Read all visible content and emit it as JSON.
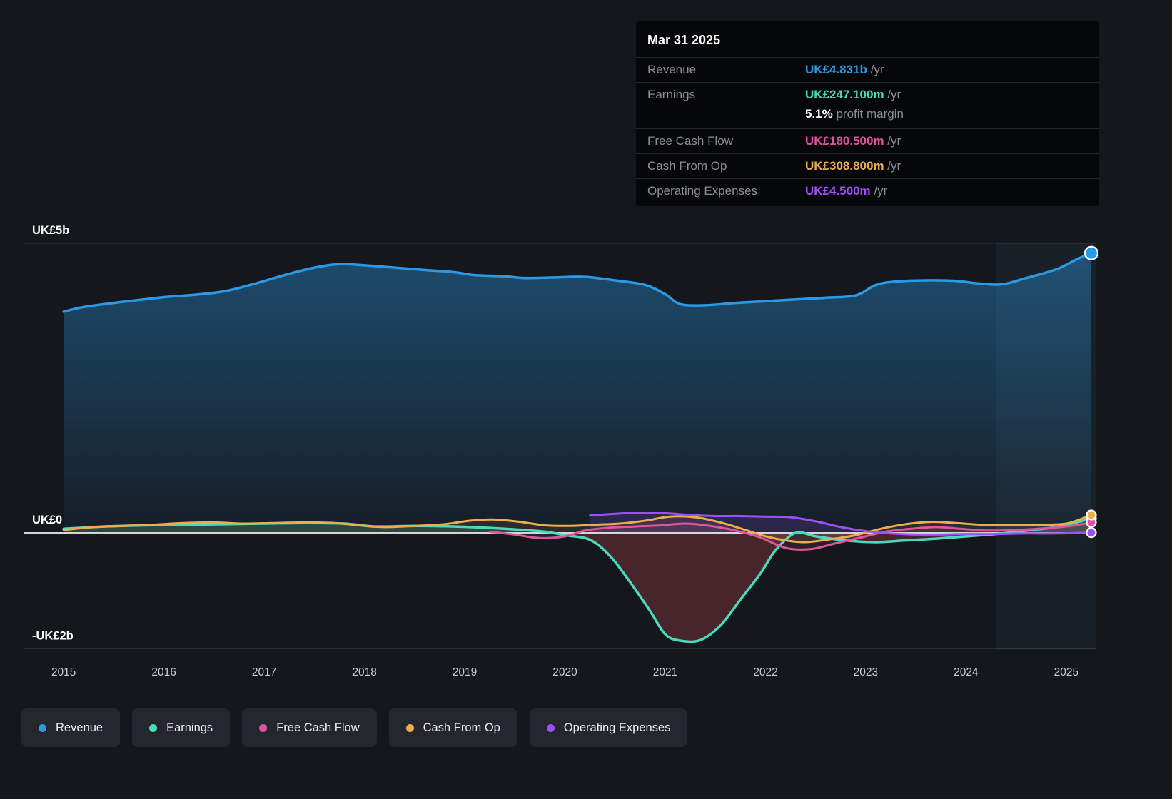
{
  "tooltip": {
    "date": "Mar 31 2025",
    "rows": [
      {
        "key": "revenue",
        "label": "Revenue",
        "value": "UK£4.831b",
        "suffix": " /yr",
        "color": "#2b99e5"
      },
      {
        "key": "earnings",
        "label": "Earnings",
        "value": "UK£247.100m",
        "suffix": " /yr",
        "color": "#4ad9bd"
      },
      {
        "key": "profit-margin",
        "label": "",
        "value": "5.1%",
        "suffix": " profit margin",
        "color": "#ffffff",
        "sub": true
      },
      {
        "key": "free-cash-flow",
        "label": "Free Cash Flow",
        "value": "UK£180.500m",
        "suffix": " /yr",
        "color": "#e0549d"
      },
      {
        "key": "cash-from-op",
        "label": "Cash From Op",
        "value": "UK£308.800m",
        "suffix": " /yr",
        "color": "#ebad4f"
      },
      {
        "key": "operating-expenses",
        "label": "Operating Expenses",
        "value": "UK£4.500m",
        "suffix": " /yr",
        "color": "#9b51f5"
      }
    ]
  },
  "legend": {
    "items": [
      {
        "key": "revenue",
        "label": "Revenue",
        "color": "#2b99e5"
      },
      {
        "key": "earnings",
        "label": "Earnings",
        "color": "#4ad9bd"
      },
      {
        "key": "free-cash-flow",
        "label": "Free Cash Flow",
        "color": "#e0549d"
      },
      {
        "key": "cash-from-op",
        "label": "Cash From Op",
        "color": "#ebad4f"
      },
      {
        "key": "operating-expenses",
        "label": "Operating Expenses",
        "color": "#9b51f5"
      }
    ]
  },
  "chart_data": {
    "type": "area",
    "title": "Company financial history, UK£ billions vs year",
    "unit": "UK£ billions per year",
    "x_range": [
      2014.6,
      2025.3
    ],
    "divider_year": 2024.3,
    "x_axis": {
      "ticks": [
        2015,
        2016,
        2017,
        2018,
        2019,
        2020,
        2021,
        2022,
        2023,
        2024,
        2025
      ]
    },
    "y_axis": {
      "range": [
        -2.02,
        5
      ],
      "ticks": [
        {
          "value": 5,
          "label": "UK£5b"
        },
        {
          "value": 2,
          "label": ""
        },
        {
          "value": 0,
          "label": "UK£0"
        },
        {
          "value": -2,
          "label": "-UK£2b"
        }
      ]
    },
    "series": [
      {
        "name": "Revenue",
        "color": "#2b99e5",
        "width": 3.5,
        "area": "gradient",
        "points": [
          [
            2015.0,
            3.82
          ],
          [
            2015.2,
            3.9
          ],
          [
            2015.5,
            3.97
          ],
          [
            2015.8,
            4.03
          ],
          [
            2016.0,
            4.07
          ],
          [
            2016.3,
            4.11
          ],
          [
            2016.6,
            4.17
          ],
          [
            2016.9,
            4.3
          ],
          [
            2017.2,
            4.45
          ],
          [
            2017.5,
            4.58
          ],
          [
            2017.75,
            4.64
          ],
          [
            2018.0,
            4.62
          ],
          [
            2018.3,
            4.58
          ],
          [
            2018.6,
            4.54
          ],
          [
            2018.9,
            4.5
          ],
          [
            2019.1,
            4.45
          ],
          [
            2019.4,
            4.43
          ],
          [
            2019.6,
            4.4
          ],
          [
            2019.9,
            4.41
          ],
          [
            2020.2,
            4.42
          ],
          [
            2020.5,
            4.36
          ],
          [
            2020.8,
            4.28
          ],
          [
            2021.0,
            4.12
          ],
          [
            2021.15,
            3.95
          ],
          [
            2021.4,
            3.93
          ],
          [
            2021.7,
            3.97
          ],
          [
            2022.0,
            4.0
          ],
          [
            2022.3,
            4.03
          ],
          [
            2022.6,
            4.06
          ],
          [
            2022.9,
            4.1
          ],
          [
            2023.1,
            4.28
          ],
          [
            2023.3,
            4.34
          ],
          [
            2023.6,
            4.36
          ],
          [
            2023.9,
            4.35
          ],
          [
            2024.1,
            4.31
          ],
          [
            2024.35,
            4.29
          ],
          [
            2024.6,
            4.4
          ],
          [
            2024.9,
            4.55
          ],
          [
            2025.1,
            4.72
          ],
          [
            2025.25,
            4.831
          ]
        ]
      },
      {
        "name": "Earnings",
        "color": "#4ad9bd",
        "width": 3.5,
        "area": "plain",
        "area_opacity": 0.15,
        "neg_fill": "#c2464f",
        "neg_opacity": 0.3,
        "points": [
          [
            2015.0,
            0.07
          ],
          [
            2015.4,
            0.11
          ],
          [
            2015.8,
            0.13
          ],
          [
            2016.2,
            0.14
          ],
          [
            2016.6,
            0.15
          ],
          [
            2017.0,
            0.16
          ],
          [
            2017.4,
            0.17
          ],
          [
            2017.8,
            0.16
          ],
          [
            2018.1,
            0.11
          ],
          [
            2018.5,
            0.12
          ],
          [
            2018.9,
            0.11
          ],
          [
            2019.2,
            0.09
          ],
          [
            2019.5,
            0.06
          ],
          [
            2019.8,
            0.02
          ],
          [
            2020.0,
            -0.04
          ],
          [
            2020.25,
            -0.12
          ],
          [
            2020.45,
            -0.4
          ],
          [
            2020.65,
            -0.85
          ],
          [
            2020.85,
            -1.35
          ],
          [
            2021.0,
            -1.75
          ],
          [
            2021.15,
            -1.86
          ],
          [
            2021.35,
            -1.85
          ],
          [
            2021.55,
            -1.6
          ],
          [
            2021.75,
            -1.15
          ],
          [
            2021.95,
            -0.7
          ],
          [
            2022.1,
            -0.3
          ],
          [
            2022.3,
            0.0
          ],
          [
            2022.5,
            -0.06
          ],
          [
            2022.8,
            -0.13
          ],
          [
            2023.1,
            -0.16
          ],
          [
            2023.4,
            -0.13
          ],
          [
            2023.7,
            -0.1
          ],
          [
            2024.0,
            -0.06
          ],
          [
            2024.3,
            -0.02
          ],
          [
            2024.6,
            0.04
          ],
          [
            2024.9,
            0.1
          ],
          [
            2025.1,
            0.18
          ],
          [
            2025.25,
            0.2471
          ]
        ]
      },
      {
        "name": "Free Cash Flow",
        "color": "#e0549d",
        "width": 3,
        "area": "plain",
        "area_opacity": 0.12,
        "points": [
          [
            2019.25,
            0.02
          ],
          [
            2019.5,
            -0.03
          ],
          [
            2019.75,
            -0.09
          ],
          [
            2020.0,
            -0.06
          ],
          [
            2020.2,
            0.04
          ],
          [
            2020.45,
            0.09
          ],
          [
            2020.7,
            0.11
          ],
          [
            2020.95,
            0.13
          ],
          [
            2021.2,
            0.16
          ],
          [
            2021.45,
            0.12
          ],
          [
            2021.7,
            0.04
          ],
          [
            2021.95,
            -0.08
          ],
          [
            2022.2,
            -0.26
          ],
          [
            2022.45,
            -0.28
          ],
          [
            2022.7,
            -0.18
          ],
          [
            2022.95,
            -0.08
          ],
          [
            2023.2,
            0.02
          ],
          [
            2023.45,
            0.07
          ],
          [
            2023.7,
            0.1
          ],
          [
            2023.95,
            0.07
          ],
          [
            2024.2,
            0.04
          ],
          [
            2024.5,
            0.05
          ],
          [
            2024.8,
            0.08
          ],
          [
            2025.05,
            0.12
          ],
          [
            2025.25,
            0.1805
          ]
        ]
      },
      {
        "name": "Cash From Op",
        "color": "#ebad4f",
        "width": 3,
        "area": "plain",
        "area_opacity": 0.1,
        "points": [
          [
            2015.0,
            0.05
          ],
          [
            2015.3,
            0.1
          ],
          [
            2015.6,
            0.12
          ],
          [
            2015.9,
            0.14
          ],
          [
            2016.2,
            0.17
          ],
          [
            2016.5,
            0.18
          ],
          [
            2016.8,
            0.16
          ],
          [
            2017.1,
            0.17
          ],
          [
            2017.4,
            0.18
          ],
          [
            2017.7,
            0.17
          ],
          [
            2017.95,
            0.13
          ],
          [
            2018.2,
            0.1
          ],
          [
            2018.5,
            0.12
          ],
          [
            2018.8,
            0.15
          ],
          [
            2019.05,
            0.21
          ],
          [
            2019.3,
            0.23
          ],
          [
            2019.55,
            0.19
          ],
          [
            2019.8,
            0.13
          ],
          [
            2020.05,
            0.12
          ],
          [
            2020.3,
            0.14
          ],
          [
            2020.55,
            0.16
          ],
          [
            2020.8,
            0.21
          ],
          [
            2021.05,
            0.28
          ],
          [
            2021.3,
            0.27
          ],
          [
            2021.55,
            0.18
          ],
          [
            2021.8,
            0.05
          ],
          [
            2022.0,
            -0.06
          ],
          [
            2022.2,
            -0.13
          ],
          [
            2022.4,
            -0.16
          ],
          [
            2022.65,
            -0.11
          ],
          [
            2022.9,
            -0.04
          ],
          [
            2023.15,
            0.07
          ],
          [
            2023.4,
            0.15
          ],
          [
            2023.65,
            0.19
          ],
          [
            2023.9,
            0.17
          ],
          [
            2024.15,
            0.14
          ],
          [
            2024.4,
            0.13
          ],
          [
            2024.7,
            0.14
          ],
          [
            2025.0,
            0.16
          ],
          [
            2025.25,
            0.3088
          ]
        ]
      },
      {
        "name": "Operating Expenses",
        "color": "#9b51f5",
        "width": 3,
        "area": "plain",
        "area_opacity": 0.16,
        "points": [
          [
            2020.25,
            0.3
          ],
          [
            2020.5,
            0.33
          ],
          [
            2020.75,
            0.35
          ],
          [
            2021.0,
            0.34
          ],
          [
            2021.25,
            0.31
          ],
          [
            2021.5,
            0.29
          ],
          [
            2021.75,
            0.29
          ],
          [
            2022.0,
            0.28
          ],
          [
            2022.25,
            0.27
          ],
          [
            2022.5,
            0.2
          ],
          [
            2022.75,
            0.1
          ],
          [
            2023.0,
            0.03
          ],
          [
            2023.25,
            -0.01
          ],
          [
            2023.5,
            -0.03
          ],
          [
            2023.75,
            -0.03
          ],
          [
            2024.0,
            -0.02
          ],
          [
            2024.3,
            -0.02
          ],
          [
            2024.6,
            -0.01
          ],
          [
            2024.9,
            -0.01
          ],
          [
            2025.25,
            0.0045
          ]
        ]
      }
    ]
  }
}
